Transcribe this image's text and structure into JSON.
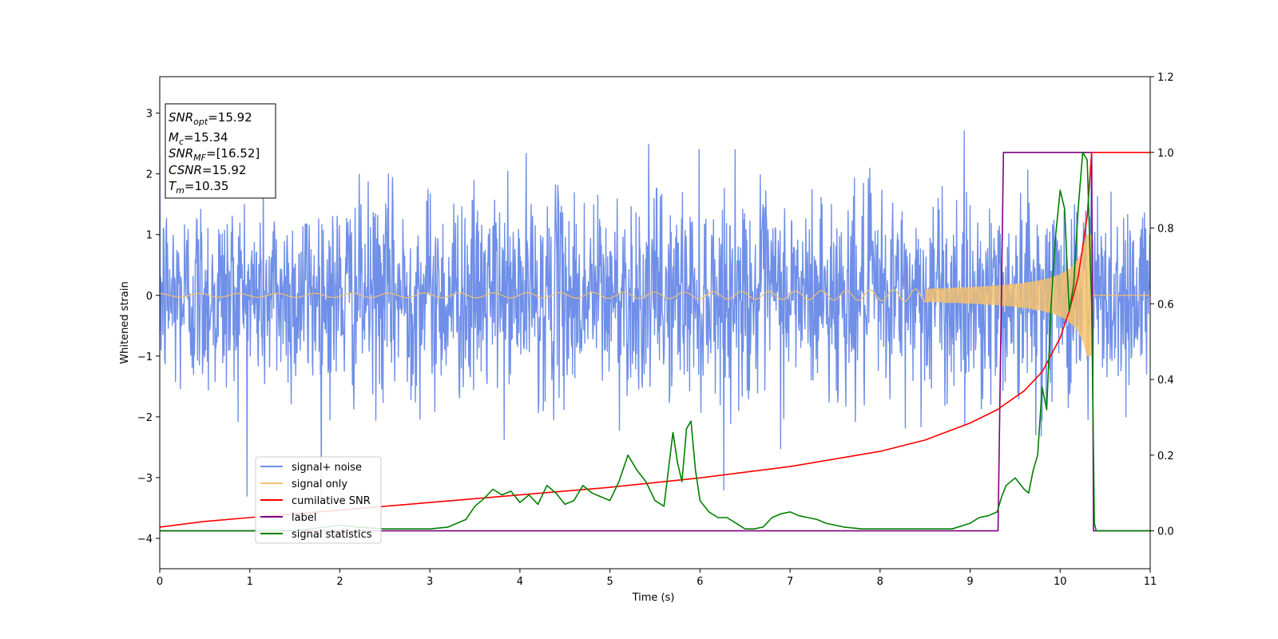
{
  "chart_data": {
    "type": "line",
    "xlabel": "Time (s)",
    "ylabel": "Whitened strain",
    "xlim": [
      0,
      11
    ],
    "ylim": [
      -4.5,
      3.6
    ],
    "y2lim": [
      -0.1,
      1.2
    ],
    "x_ticks": [
      "0",
      "1",
      "2",
      "3",
      "4",
      "5",
      "6",
      "7",
      "8",
      "9",
      "10",
      "11"
    ],
    "y_ticks": [
      "−4",
      "−3",
      "−2",
      "−1",
      "0",
      "1",
      "2",
      "3"
    ],
    "y2_ticks": [
      "0.0",
      "0.2",
      "0.4",
      "0.6",
      "0.8",
      "1.0",
      "1.2"
    ],
    "legend_position": "lower-left",
    "info_box": {
      "snr_opt": {
        "base": "SNR",
        "sub": "opt",
        "value": "=15.92"
      },
      "mc": {
        "base": "M",
        "sub": "c",
        "value": "=15.34"
      },
      "snr_mf": {
        "base": "SNR",
        "sub": "MF",
        "value": "=[16.52]"
      },
      "csnr": {
        "base": "CSNR",
        "sub": "",
        "value": "=15.92"
      },
      "tm": {
        "base": "T",
        "sub": "m",
        "value": "=10.35"
      }
    },
    "series": [
      {
        "name": "signal+ noise",
        "color": "#6f8fe8",
        "axis": "left",
        "kind": "noise",
        "description_values": {
          "amplitude_typical": 1.3,
          "peak_max": 3.2,
          "peak_min": -4.15,
          "end_time": 11
        }
      },
      {
        "name": "signal only",
        "color": "#f5c06b",
        "axis": "left",
        "kind": "chirp",
        "description_values": {
          "start_amplitude": 0.03,
          "peak_amplitude": 1.0,
          "merger_time": 10.35
        }
      },
      {
        "name": "cumilative SNR",
        "color": "#ff0000",
        "axis": "right",
        "x": [
          0,
          0.5,
          1,
          2,
          3,
          4,
          5,
          6,
          7,
          8,
          8.5,
          9,
          9.3,
          9.6,
          9.8,
          10.0,
          10.1,
          10.2,
          10.3,
          10.35,
          10.36,
          11
        ],
        "y": [
          0.01,
          0.025,
          0.035,
          0.055,
          0.075,
          0.095,
          0.115,
          0.14,
          0.17,
          0.21,
          0.24,
          0.285,
          0.32,
          0.37,
          0.42,
          0.51,
          0.58,
          0.67,
          0.83,
          1.0,
          1.0,
          1.0
        ]
      },
      {
        "name": "label",
        "color": "#800080",
        "axis": "right",
        "x": [
          0,
          9.31,
          9.37,
          10.35,
          10.37,
          11
        ],
        "y": [
          0.0,
          0.0,
          1.0,
          1.0,
          0.0,
          0.0
        ]
      },
      {
        "name": "signal statistics",
        "color": "#008000",
        "axis": "right",
        "x": [
          0,
          1.5,
          2.0,
          2.2,
          2.5,
          3.0,
          3.2,
          3.4,
          3.5,
          3.6,
          3.7,
          3.8,
          3.9,
          4.0,
          4.1,
          4.2,
          4.3,
          4.4,
          4.5,
          4.6,
          4.7,
          4.8,
          4.9,
          5.0,
          5.1,
          5.2,
          5.3,
          5.4,
          5.5,
          5.6,
          5.7,
          5.75,
          5.8,
          5.85,
          5.9,
          5.95,
          6.0,
          6.1,
          6.2,
          6.3,
          6.4,
          6.5,
          6.6,
          6.7,
          6.8,
          6.9,
          7.0,
          7.1,
          7.2,
          7.3,
          7.4,
          7.5,
          7.6,
          7.8,
          8.0,
          8.2,
          8.5,
          8.8,
          9.0,
          9.1,
          9.2,
          9.3,
          9.35,
          9.4,
          9.5,
          9.6,
          9.65,
          9.7,
          9.75,
          9.8,
          9.85,
          9.9,
          9.95,
          10.0,
          10.05,
          10.1,
          10.15,
          10.2,
          10.25,
          10.3,
          10.35,
          10.38,
          10.4,
          11
        ],
        "y": [
          0.0,
          0.0,
          0.015,
          0.01,
          0.005,
          0.005,
          0.01,
          0.03,
          0.065,
          0.085,
          0.11,
          0.095,
          0.105,
          0.075,
          0.095,
          0.07,
          0.12,
          0.1,
          0.07,
          0.08,
          0.12,
          0.1,
          0.09,
          0.08,
          0.13,
          0.2,
          0.16,
          0.13,
          0.08,
          0.065,
          0.26,
          0.18,
          0.13,
          0.27,
          0.29,
          0.16,
          0.08,
          0.05,
          0.035,
          0.035,
          0.02,
          0.005,
          0.005,
          0.01,
          0.035,
          0.045,
          0.05,
          0.04,
          0.035,
          0.03,
          0.02,
          0.015,
          0.01,
          0.005,
          0.005,
          0.005,
          0.005,
          0.005,
          0.02,
          0.035,
          0.04,
          0.05,
          0.09,
          0.12,
          0.14,
          0.11,
          0.1,
          0.16,
          0.2,
          0.38,
          0.32,
          0.6,
          0.78,
          0.9,
          0.85,
          0.58,
          0.65,
          0.85,
          1.0,
          0.98,
          0.6,
          0.02,
          0.0,
          0.0
        ]
      }
    ]
  }
}
